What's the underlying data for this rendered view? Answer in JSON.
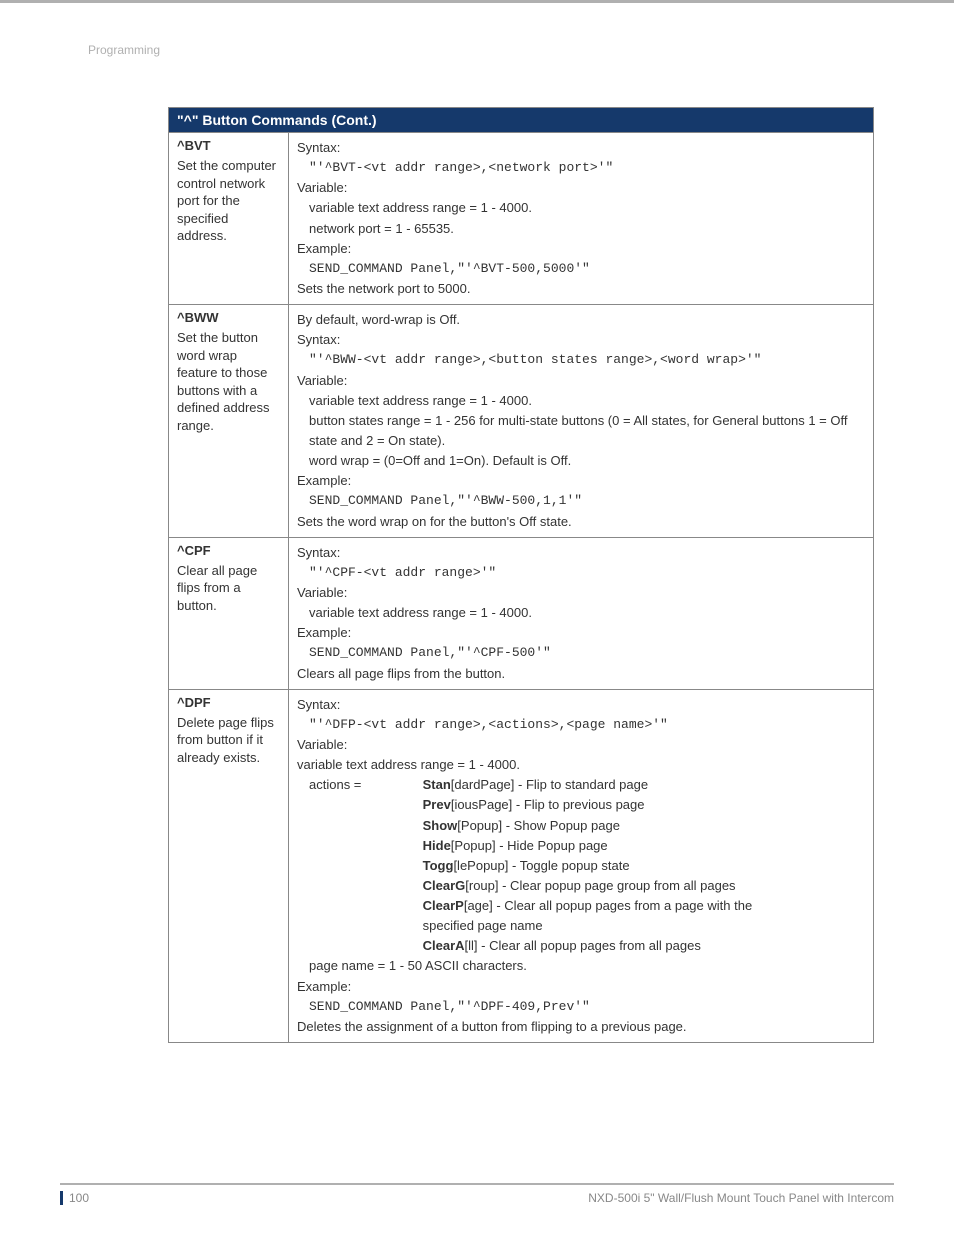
{
  "header": {
    "section": "Programming"
  },
  "table": {
    "title": "\"^\" Button Commands (Cont.)",
    "rows": [
      {
        "name": "^BVT",
        "desc": "Set the computer control network port for the specified address.",
        "syntax_label": "Syntax:",
        "syntax": "\"'^BVT-<vt addr range>,<network port>'\"",
        "variable_label": "Variable:",
        "variables": [
          "variable text address range = 1 - 4000.",
          "network port = 1 - 65535."
        ],
        "example_label": "Example:",
        "example": "SEND_COMMAND Panel,\"'^BVT-500,5000'\"",
        "result": "Sets the network port to 5000."
      },
      {
        "name": "^BWW",
        "desc": "Set the button word wrap feature to those buttons with a defined address range.",
        "pre": "By default, word-wrap is Off.",
        "syntax_label": "Syntax:",
        "syntax": "\"'^BWW-<vt addr range>,<button states range>,<word wrap>'\"",
        "variable_label": "Variable:",
        "variables": [
          "variable text address range = 1 - 4000.",
          "button states range = 1 - 256 for multi-state buttons (0 = All states, for General buttons 1 = Off state and 2 = On state).",
          "word wrap = (0=Off and 1=On). Default is Off."
        ],
        "example_label": "Example:",
        "example": "SEND_COMMAND Panel,\"'^BWW-500,1,1'\"",
        "result": "Sets the word wrap on for the button's Off state."
      },
      {
        "name": "^CPF",
        "desc": "Clear all page flips from a button.",
        "syntax_label": "Syntax:",
        "syntax": "\"'^CPF-<vt addr range>'\"",
        "variable_label": "Variable:",
        "variables": [
          "variable text address range = 1 - 4000."
        ],
        "example_label": "Example:",
        "example": "SEND_COMMAND Panel,\"'^CPF-500'\"",
        "result": "Clears all page flips from the button."
      },
      {
        "name": "^DPF",
        "desc": "Delete page flips from button if it already exists.",
        "syntax_label": "Syntax:",
        "syntax": "\"'^DFP-<vt addr range>,<actions>,<page name>'\"",
        "variable_label": "Variable:",
        "var_line1": "variable text address range = 1 - 4000.",
        "actions_label": "actions =",
        "actions": [
          {
            "b": "Stan",
            "r": "[dardPage] - Flip to standard page"
          },
          {
            "b": "Prev",
            "r": "[iousPage] - Flip to previous page"
          },
          {
            "b": "Show",
            "r": "[Popup] - Show Popup page"
          },
          {
            "b": "Hide",
            "r": "[Popup] - Hide Popup page"
          },
          {
            "b": "Togg",
            "r": "[lePopup] - Toggle popup state"
          },
          {
            "b": "ClearG",
            "r": "[roup] - Clear popup page group from all pages"
          },
          {
            "b": "ClearP",
            "r": "[age] - Clear all popup pages from a page with the"
          },
          {
            "b": "",
            "r": "           specified page name"
          },
          {
            "b": "ClearA",
            "r": "[ll] - Clear all popup pages from all pages"
          }
        ],
        "pagename": "page name = 1 - 50 ASCII characters.",
        "example_label": "Example:",
        "example": "SEND_COMMAND Panel,\"'^DPF-409,Prev'\"",
        "result": "Deletes the assignment of a button from flipping to a previous page."
      }
    ]
  },
  "footer": {
    "page": "100",
    "product": "NXD-500i 5\" Wall/Flush Mount Touch Panel with Intercom"
  }
}
